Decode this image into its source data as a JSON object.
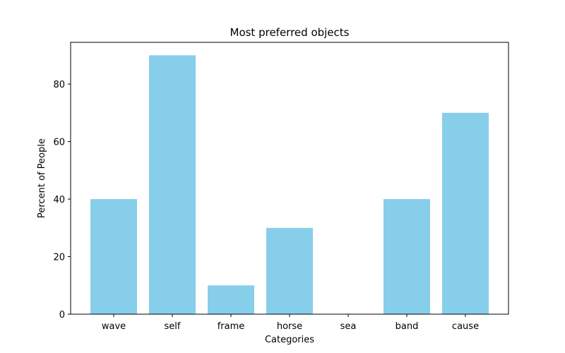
{
  "chart_data": {
    "type": "bar",
    "title": "Most preferred objects",
    "xlabel": "Categories",
    "ylabel": "Percent of People",
    "categories": [
      "wave",
      "self",
      "frame",
      "horse",
      "sea",
      "band",
      "cause"
    ],
    "values": [
      40,
      90,
      10,
      30,
      0,
      40,
      70
    ],
    "ylim": [
      0,
      94.5
    ],
    "yticks": [
      0,
      20,
      40,
      60,
      80
    ],
    "bar_color": "#87ceeb",
    "grid": false,
    "legend": "none"
  }
}
